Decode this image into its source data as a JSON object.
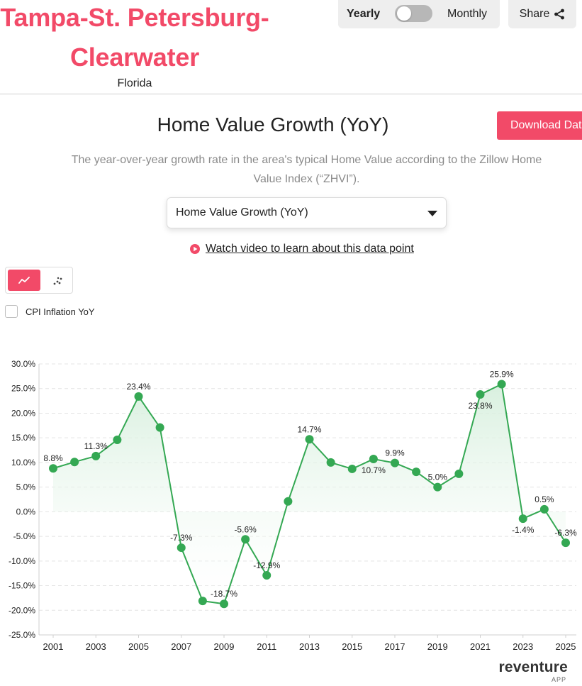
{
  "header": {
    "region_line1": "Tampa-St. Petersburg-",
    "region_line2": "Clearwater",
    "state": "Florida",
    "toggle_left": "Yearly",
    "toggle_right": "Monthly",
    "share_label": "Share"
  },
  "section": {
    "title": "Home Value Growth (YoY)",
    "download_label": "Download Data",
    "description": "The year-over-year growth rate in the area's typical Home Value according to the Zillow Home Value Index (“ZHVI”).",
    "selected_metric": "Home Value Growth (YoY)",
    "video_link": "Watch video to learn about this data point"
  },
  "controls": {
    "cpi_label": "CPI Inflation YoY",
    "line_icon": "line-chart-icon",
    "scatter_icon": "scatter-chart-icon"
  },
  "brand": {
    "name": "reventure",
    "sub": "APP"
  },
  "colors": {
    "accent": "#f24a68",
    "series": "#34a853",
    "fill": "#e6f4ea"
  },
  "chart_data": {
    "type": "line",
    "title": "Home Value Growth (YoY)",
    "xlabel": "",
    "ylabel": "",
    "x": [
      2001,
      2002,
      2003,
      2004,
      2005,
      2006,
      2007,
      2008,
      2009,
      2010,
      2011,
      2012,
      2013,
      2014,
      2015,
      2016,
      2017,
      2018,
      2019,
      2020,
      2021,
      2022,
      2023,
      2024,
      2025
    ],
    "series": [
      {
        "name": "Home Value Growth (YoY)",
        "values": [
          8.8,
          10.1,
          11.3,
          14.6,
          23.4,
          17.1,
          -7.3,
          -18.1,
          -18.7,
          -5.6,
          -12.9,
          2.1,
          14.7,
          10.0,
          8.7,
          10.7,
          9.9,
          8.1,
          5.0,
          7.7,
          23.8,
          25.9,
          -1.4,
          0.5,
          -6.3
        ]
      }
    ],
    "point_labels": [
      {
        "x": 2001,
        "text": "8.8%",
        "pos": "above"
      },
      {
        "x": 2003,
        "text": "11.3%",
        "pos": "above"
      },
      {
        "x": 2005,
        "text": "23.4%",
        "pos": "above"
      },
      {
        "x": 2007,
        "text": "-7.3%",
        "pos": "above"
      },
      {
        "x": 2009,
        "text": "-18.7%",
        "pos": "above"
      },
      {
        "x": 2010,
        "text": "-5.6%",
        "pos": "above"
      },
      {
        "x": 2011,
        "text": "-12.9%",
        "pos": "above"
      },
      {
        "x": 2013,
        "text": "14.7%",
        "pos": "above"
      },
      {
        "x": 2016,
        "text": "10.7%",
        "pos": "below"
      },
      {
        "x": 2017,
        "text": "9.9%",
        "pos": "above"
      },
      {
        "x": 2019,
        "text": "5.0%",
        "pos": "above"
      },
      {
        "x": 2021,
        "text": "23.8%",
        "pos": "below"
      },
      {
        "x": 2022,
        "text": "25.9%",
        "pos": "above"
      },
      {
        "x": 2023,
        "text": "-1.4%",
        "pos": "below"
      },
      {
        "x": 2024,
        "text": "0.5%",
        "pos": "above"
      },
      {
        "x": 2025,
        "text": "-6.3%",
        "pos": "above"
      }
    ],
    "x_ticks": [
      "2001",
      "2003",
      "2005",
      "2007",
      "2009",
      "2011",
      "2013",
      "2015",
      "2017",
      "2019",
      "2021",
      "2023",
      "2025"
    ],
    "y_ticks": [
      "30.0%",
      "25.0%",
      "20.0%",
      "15.0%",
      "10.0%",
      "5.0%",
      "0.0%",
      "-5.0%",
      "-10.0%",
      "-15.0%",
      "-20.0%",
      "-25.0%"
    ],
    "ylim": [
      -25,
      30
    ],
    "grid": true
  }
}
